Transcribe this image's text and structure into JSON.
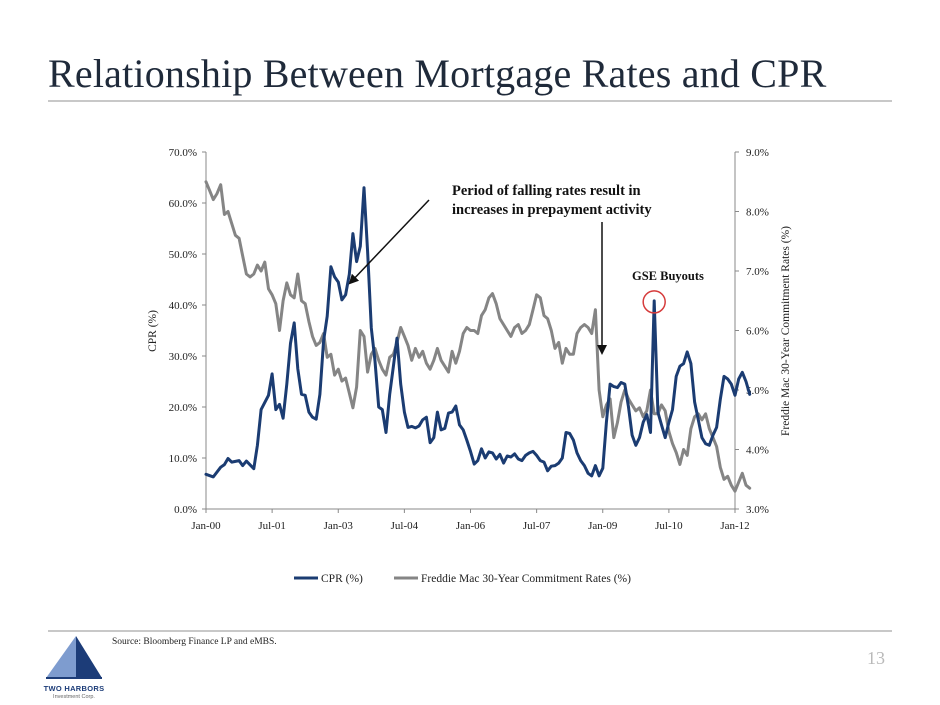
{
  "slide": {
    "title": "Relationship Between Mortgage Rates and CPR",
    "source": "Source:  Bloomberg Finance LP and eMBS.",
    "page_number": "13",
    "logo_text": "TWO HARBORS",
    "logo_subtext": "Investment Corp."
  },
  "chart_data": {
    "type": "line",
    "title": "",
    "xlabel": "",
    "ylabel": "CPR (%)",
    "ylabel_right": "Freddie Mac 30-Year Commitment Rates (%)",
    "x_tick_labels": [
      "Jan-00",
      "Jul-01",
      "Jan-03",
      "Jul-04",
      "Jan-06",
      "Jul-07",
      "Jan-09",
      "Jul-10",
      "Jan-12"
    ],
    "x_tick_positions": [
      0,
      18,
      36,
      54,
      72,
      90,
      108,
      126,
      144
    ],
    "xlim": [
      0,
      144
    ],
    "y_left_ticks": [
      "0.0%",
      "10.0%",
      "20.0%",
      "30.0%",
      "40.0%",
      "50.0%",
      "60.0%",
      "70.0%"
    ],
    "y_left_lim": [
      0,
      70
    ],
    "y_right_ticks": [
      "3.0%",
      "4.0%",
      "5.0%",
      "6.0%",
      "7.0%",
      "8.0%",
      "9.0%"
    ],
    "y_right_lim": [
      3,
      9
    ],
    "legend": [
      "CPR (%)",
      "Freddie Mac 30-Year Commitment Rates (%)"
    ],
    "legend_position": "bottom",
    "colors": {
      "cpr": "#1b3c72",
      "rates": "#858585",
      "circle": "#d63b3b"
    },
    "annotations": [
      {
        "text_lines": [
          "Period of falling rates result in",
          "increases in prepayment activity"
        ]
      },
      {
        "text": "GSE Buyouts"
      }
    ],
    "series": [
      {
        "name": "CPR (%)",
        "axis": "left",
        "points": [
          [
            0,
            6.8
          ],
          [
            2,
            6.3
          ],
          [
            4,
            8.2
          ],
          [
            5,
            8.7
          ],
          [
            6,
            9.9
          ],
          [
            7,
            9.2
          ],
          [
            9,
            9.5
          ],
          [
            10,
            8.5
          ],
          [
            11,
            9.4
          ],
          [
            13,
            7.9
          ],
          [
            14,
            12.5
          ],
          [
            15,
            19.5
          ],
          [
            17,
            22.3
          ],
          [
            18,
            26.5
          ],
          [
            19,
            19.5
          ],
          [
            20,
            20.5
          ],
          [
            21,
            17.8
          ],
          [
            22,
            24.5
          ],
          [
            23,
            32.5
          ],
          [
            24,
            36.5
          ],
          [
            25,
            27.5
          ],
          [
            26,
            22.5
          ],
          [
            27,
            22.3
          ],
          [
            28,
            19
          ],
          [
            29,
            18
          ],
          [
            30,
            17.6
          ],
          [
            31,
            22.5
          ],
          [
            32,
            33
          ],
          [
            33,
            37.8
          ],
          [
            34,
            47.5
          ],
          [
            35,
            45.5
          ],
          [
            36,
            44.5
          ],
          [
            37,
            41
          ],
          [
            38,
            42
          ],
          [
            39,
            46
          ],
          [
            40,
            54
          ],
          [
            41,
            48.5
          ],
          [
            42,
            51.5
          ],
          [
            43,
            63
          ],
          [
            44,
            50.5
          ],
          [
            45,
            35.5
          ],
          [
            46,
            29
          ],
          [
            47,
            20
          ],
          [
            48,
            19.5
          ],
          [
            49,
            15
          ],
          [
            50,
            22.5
          ],
          [
            51,
            28
          ],
          [
            52,
            33.5
          ],
          [
            53,
            24.5
          ],
          [
            54,
            19
          ],
          [
            55,
            16
          ],
          [
            56,
            16.2
          ],
          [
            57,
            15.9
          ],
          [
            58,
            16.3
          ],
          [
            59,
            17.5
          ],
          [
            60,
            18
          ],
          [
            61,
            13
          ],
          [
            62,
            14
          ],
          [
            63,
            19
          ],
          [
            64,
            15.5
          ],
          [
            65,
            15.8
          ],
          [
            66,
            18.8
          ],
          [
            67,
            19
          ],
          [
            68,
            20.2
          ],
          [
            69,
            16.5
          ],
          [
            70,
            15.5
          ],
          [
            71,
            13.5
          ],
          [
            72,
            11.3
          ],
          [
            73,
            8.8
          ],
          [
            74,
            9.5
          ],
          [
            75,
            11.8
          ],
          [
            76,
            10
          ],
          [
            77,
            11.2
          ],
          [
            78,
            11
          ],
          [
            79,
            9.8
          ],
          [
            80,
            10.7
          ],
          [
            81,
            9
          ],
          [
            82,
            10.4
          ],
          [
            83,
            10.2
          ],
          [
            84,
            10.8
          ],
          [
            85,
            9.8
          ],
          [
            86,
            9.5
          ],
          [
            87,
            10.5
          ],
          [
            88,
            11
          ],
          [
            89,
            11.3
          ],
          [
            90,
            10.5
          ],
          [
            91,
            9.5
          ],
          [
            92,
            9.2
          ],
          [
            93,
            7.5
          ],
          [
            94,
            8.4
          ],
          [
            95,
            8.5
          ],
          [
            96,
            9
          ],
          [
            97,
            10
          ],
          [
            98,
            15
          ],
          [
            99,
            14.8
          ],
          [
            100,
            13.5
          ],
          [
            101,
            11
          ],
          [
            102,
            9.5
          ],
          [
            103,
            8.5
          ],
          [
            104,
            7
          ],
          [
            105,
            6.5
          ],
          [
            106,
            8.5
          ],
          [
            107,
            6.5
          ],
          [
            108,
            8
          ],
          [
            109,
            17
          ],
          [
            110,
            24.5
          ],
          [
            111,
            24
          ],
          [
            112,
            23.8
          ],
          [
            113,
            24.8
          ],
          [
            114,
            24.5
          ],
          [
            115,
            20
          ],
          [
            116,
            14.5
          ],
          [
            117,
            12.5
          ],
          [
            118,
            14
          ],
          [
            119,
            17
          ],
          [
            120,
            18.5
          ],
          [
            121,
            15
          ],
          [
            122,
            40.8
          ],
          [
            123,
            19
          ],
          [
            124,
            16.5
          ],
          [
            125,
            14
          ],
          [
            126,
            17
          ],
          [
            127,
            19.5
          ],
          [
            128,
            26
          ],
          [
            129,
            28
          ],
          [
            130,
            28.5
          ],
          [
            131,
            30.8
          ],
          [
            132,
            28.5
          ],
          [
            133,
            21
          ],
          [
            134,
            17.5
          ],
          [
            135,
            14
          ],
          [
            136,
            12.8
          ],
          [
            137,
            12.5
          ],
          [
            138,
            14.5
          ],
          [
            139,
            16
          ],
          [
            140,
            21.5
          ],
          [
            141,
            26
          ],
          [
            142,
            25.5
          ],
          [
            143,
            24.5
          ],
          [
            144,
            22.3
          ],
          [
            145,
            25.5
          ],
          [
            146,
            26.8
          ],
          [
            147,
            25
          ],
          [
            148,
            22.5
          ]
        ]
      },
      {
        "name": "Freddie Mac 30-Year Commitment Rates (%)",
        "axis": "right",
        "points": [
          [
            0,
            8.5
          ],
          [
            1,
            8.35
          ],
          [
            2,
            8.2
          ],
          [
            3,
            8.3
          ],
          [
            4,
            8.45
          ],
          [
            5,
            7.95
          ],
          [
            6,
            8
          ],
          [
            7,
            7.8
          ],
          [
            8,
            7.6
          ],
          [
            9,
            7.55
          ],
          [
            10,
            7.25
          ],
          [
            11,
            6.95
          ],
          [
            12,
            6.9
          ],
          [
            13,
            6.95
          ],
          [
            14,
            7.1
          ],
          [
            15,
            7
          ],
          [
            16,
            7.15
          ],
          [
            17,
            6.7
          ],
          [
            18,
            6.6
          ],
          [
            19,
            6.45
          ],
          [
            20,
            6
          ],
          [
            21,
            6.5
          ],
          [
            22,
            6.8
          ],
          [
            23,
            6.6
          ],
          [
            24,
            6.55
          ],
          [
            25,
            6.95
          ],
          [
            26,
            6.5
          ],
          [
            27,
            6.45
          ],
          [
            28,
            6.15
          ],
          [
            29,
            5.9
          ],
          [
            30,
            5.75
          ],
          [
            31,
            5.8
          ],
          [
            32,
            5.95
          ],
          [
            33,
            5.55
          ],
          [
            34,
            5.6
          ],
          [
            35,
            5.25
          ],
          [
            36,
            5.35
          ],
          [
            37,
            5.15
          ],
          [
            38,
            5.2
          ],
          [
            39,
            4.95
          ],
          [
            40,
            4.7
          ],
          [
            41,
            5.05
          ],
          [
            42,
            6
          ],
          [
            43,
            5.9
          ],
          [
            44,
            5.3
          ],
          [
            45,
            5.6
          ],
          [
            46,
            5.7
          ],
          [
            47,
            5.5
          ],
          [
            48,
            5.35
          ],
          [
            49,
            5.25
          ],
          [
            50,
            5.55
          ],
          [
            51,
            5.6
          ],
          [
            52,
            5.8
          ],
          [
            53,
            6.05
          ],
          [
            54,
            5.9
          ],
          [
            55,
            5.75
          ],
          [
            56,
            5.5
          ],
          [
            57,
            5.7
          ],
          [
            58,
            5.55
          ],
          [
            59,
            5.65
          ],
          [
            60,
            5.45
          ],
          [
            61,
            5.35
          ],
          [
            62,
            5.5
          ],
          [
            63,
            5.7
          ],
          [
            64,
            5.5
          ],
          [
            65,
            5.4
          ],
          [
            66,
            5.3
          ],
          [
            67,
            5.65
          ],
          [
            68,
            5.45
          ],
          [
            69,
            5.65
          ],
          [
            70,
            5.95
          ],
          [
            71,
            6.05
          ],
          [
            72,
            6.0
          ],
          [
            73,
            6.0
          ],
          [
            74,
            5.95
          ],
          [
            75,
            6.25
          ],
          [
            76,
            6.35
          ],
          [
            77,
            6.55
          ],
          [
            78,
            6.62
          ],
          [
            79,
            6.45
          ],
          [
            80,
            6.2
          ],
          [
            81,
            6.1
          ],
          [
            82,
            6.0
          ],
          [
            83,
            5.9
          ],
          [
            84,
            6.05
          ],
          [
            85,
            6.1
          ],
          [
            86,
            5.95
          ],
          [
            87,
            6.0
          ],
          [
            88,
            6.1
          ],
          [
            89,
            6.35
          ],
          [
            90,
            6.6
          ],
          [
            91,
            6.55
          ],
          [
            92,
            6.25
          ],
          [
            93,
            6.2
          ],
          [
            94,
            6.0
          ],
          [
            95,
            5.7
          ],
          [
            96,
            5.8
          ],
          [
            97,
            5.45
          ],
          [
            98,
            5.7
          ],
          [
            99,
            5.6
          ],
          [
            100,
            5.6
          ],
          [
            101,
            5.95
          ],
          [
            102,
            6.05
          ],
          [
            103,
            6.1
          ],
          [
            104,
            6.05
          ],
          [
            105,
            5.95
          ],
          [
            106,
            6.35
          ],
          [
            107,
            5.0
          ],
          [
            108,
            4.55
          ],
          [
            109,
            4.75
          ],
          [
            110,
            4.85
          ],
          [
            111,
            4.2
          ],
          [
            112,
            4.45
          ],
          [
            113,
            4.8
          ],
          [
            114,
            5.0
          ],
          [
            115,
            4.85
          ],
          [
            116,
            4.75
          ],
          [
            117,
            4.65
          ],
          [
            118,
            4.7
          ],
          [
            119,
            4.55
          ],
          [
            120,
            4.65
          ],
          [
            121,
            5.0
          ],
          [
            122,
            4.6
          ],
          [
            123,
            4.6
          ],
          [
            124,
            4.75
          ],
          [
            125,
            4.65
          ],
          [
            126,
            4.3
          ],
          [
            127,
            4.1
          ],
          [
            128,
            3.95
          ],
          [
            129,
            3.75
          ],
          [
            130,
            4.0
          ],
          [
            131,
            3.9
          ],
          [
            132,
            4.35
          ],
          [
            133,
            4.55
          ],
          [
            134,
            4.6
          ],
          [
            135,
            4.5
          ],
          [
            136,
            4.6
          ],
          [
            137,
            4.35
          ],
          [
            138,
            4.2
          ],
          [
            139,
            4.05
          ],
          [
            140,
            3.7
          ],
          [
            141,
            3.5
          ],
          [
            142,
            3.55
          ],
          [
            143,
            3.4
          ],
          [
            144,
            3.3
          ],
          [
            145,
            3.45
          ],
          [
            146,
            3.6
          ],
          [
            147,
            3.4
          ],
          [
            148,
            3.35
          ]
        ]
      }
    ]
  }
}
